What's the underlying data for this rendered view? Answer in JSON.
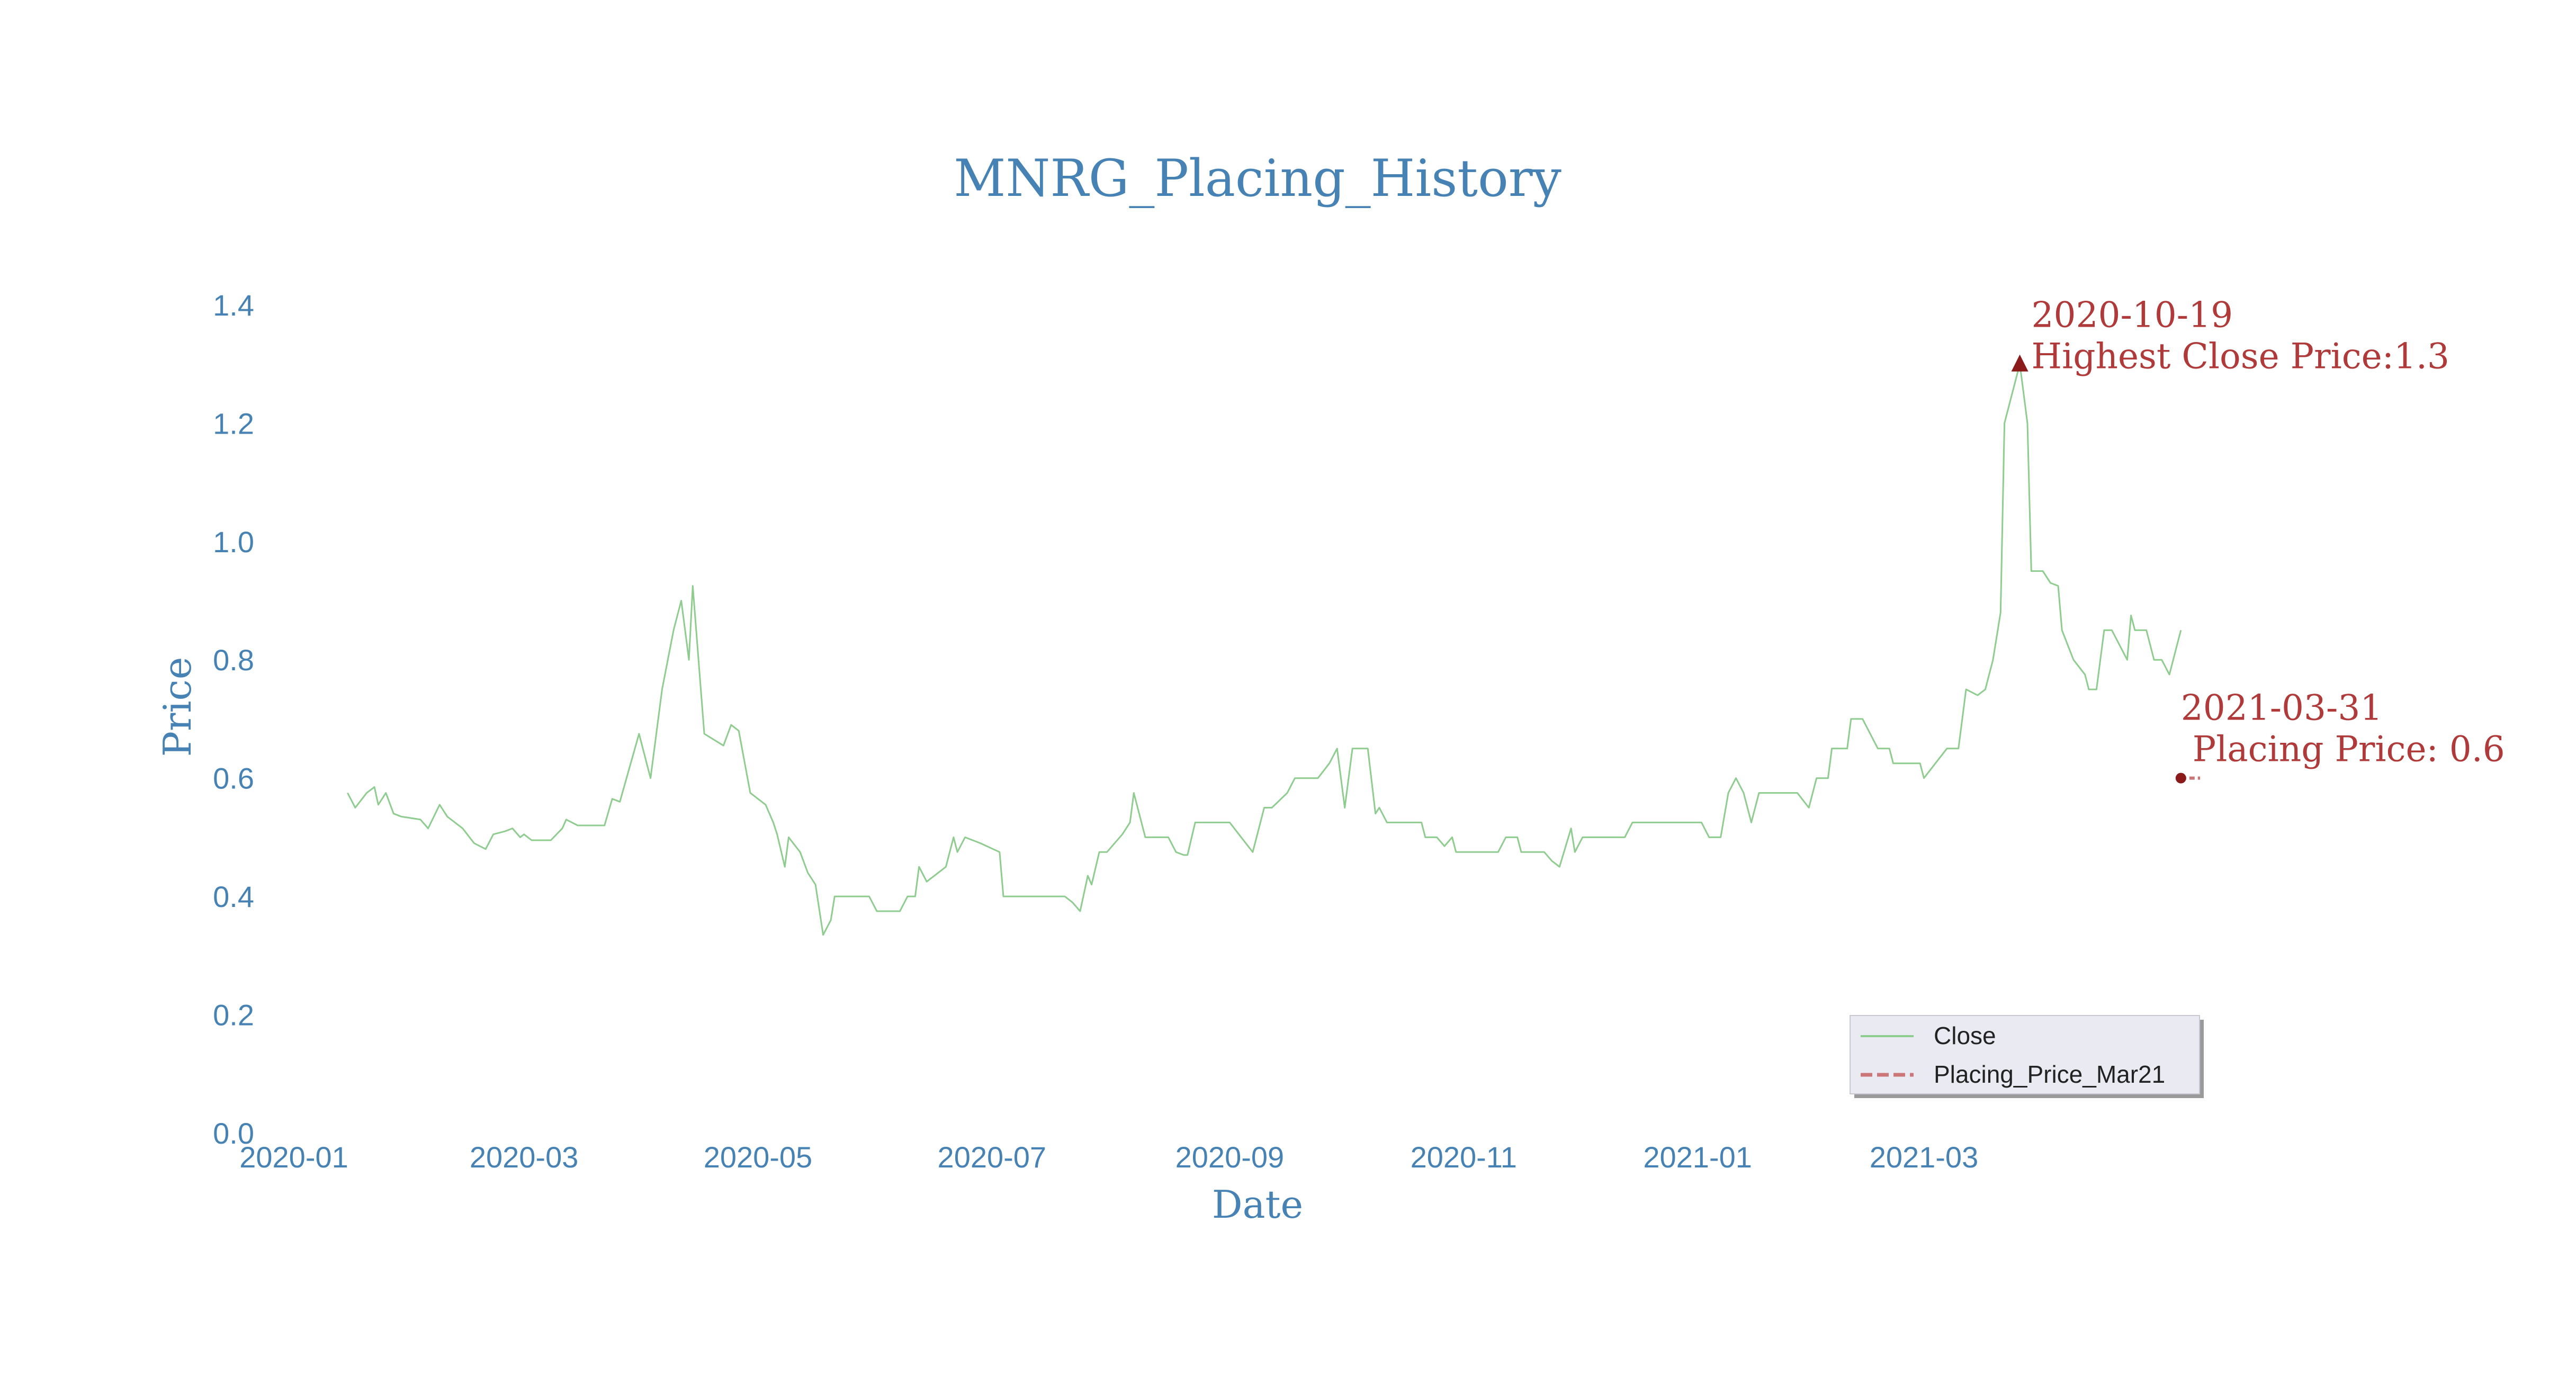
{
  "chart_data": {
    "type": "line",
    "title": "MNRG_Placing_History",
    "xlabel": "Date",
    "ylabel": "Price",
    "xlim": [
      "2020-01-01",
      "2021-05-12"
    ],
    "ylim": [
      0,
      1.45
    ],
    "x_ticks": [
      "2020-01",
      "2020-03",
      "2020-05",
      "2020-07",
      "2020-09",
      "2020-11",
      "2021-01",
      "2021-03"
    ],
    "y_ticks": [
      "0.0",
      "0.2",
      "0.4",
      "0.6",
      "0.8",
      "1.0",
      "1.2",
      "1.4"
    ],
    "grid": false,
    "legend": {
      "placement": "lower-right",
      "entries": [
        "Close",
        "Placing_Price_Mar21"
      ]
    },
    "colors": {
      "close": "#8fcc8f",
      "placing": "#cc7777",
      "annotation": "#b03a3a",
      "marker": "#8b1a1a",
      "text": "#4682b4"
    },
    "series": [
      {
        "name": "Close",
        "points": [
          [
            "2020-01-15",
            0.575
          ],
          [
            "2020-01-17",
            0.55
          ],
          [
            "2020-01-20",
            0.575
          ],
          [
            "2020-01-22",
            0.585
          ],
          [
            "2020-01-23",
            0.555
          ],
          [
            "2020-01-25",
            0.575
          ],
          [
            "2020-01-27",
            0.54
          ],
          [
            "2020-01-29",
            0.535
          ],
          [
            "2020-02-03",
            0.53
          ],
          [
            "2020-02-05",
            0.515
          ],
          [
            "2020-02-08",
            0.555
          ],
          [
            "2020-02-10",
            0.535
          ],
          [
            "2020-02-14",
            0.515
          ],
          [
            "2020-02-17",
            0.49
          ],
          [
            "2020-02-20",
            0.48
          ],
          [
            "2020-02-22",
            0.505
          ],
          [
            "2020-02-25",
            0.51
          ],
          [
            "2020-02-27",
            0.515
          ],
          [
            "2020-02-29",
            0.5
          ],
          [
            "2020-03-01",
            0.505
          ],
          [
            "2020-03-03",
            0.495
          ],
          [
            "2020-03-05",
            0.495
          ],
          [
            "2020-03-08",
            0.495
          ],
          [
            "2020-03-11",
            0.515
          ],
          [
            "2020-03-12",
            0.53
          ],
          [
            "2020-03-15",
            0.52
          ],
          [
            "2020-03-19",
            0.52
          ],
          [
            "2020-03-22",
            0.52
          ],
          [
            "2020-03-24",
            0.565
          ],
          [
            "2020-03-26",
            0.56
          ],
          [
            "2020-03-31",
            0.675
          ],
          [
            "2020-04-03",
            0.6
          ],
          [
            "2020-04-06",
            0.75
          ],
          [
            "2020-04-09",
            0.85
          ],
          [
            "2020-04-11",
            0.9
          ],
          [
            "2020-04-13",
            0.8
          ],
          [
            "2020-04-14",
            0.925
          ],
          [
            "2020-04-17",
            0.675
          ],
          [
            "2020-04-22",
            0.655
          ],
          [
            "2020-04-24",
            0.69
          ],
          [
            "2020-04-26",
            0.68
          ],
          [
            "2020-04-29",
            0.575
          ],
          [
            "2020-05-01",
            0.565
          ],
          [
            "2020-05-03",
            0.555
          ],
          [
            "2020-05-05",
            0.525
          ],
          [
            "2020-05-06",
            0.505
          ],
          [
            "2020-05-08",
            0.45
          ],
          [
            "2020-05-09",
            0.5
          ],
          [
            "2020-05-12",
            0.475
          ],
          [
            "2020-05-14",
            0.44
          ],
          [
            "2020-05-16",
            0.42
          ],
          [
            "2020-05-18",
            0.335
          ],
          [
            "2020-05-20",
            0.36
          ],
          [
            "2020-05-21",
            0.4
          ],
          [
            "2020-05-25",
            0.4
          ],
          [
            "2020-05-28",
            0.4
          ],
          [
            "2020-05-30",
            0.4
          ],
          [
            "2020-06-01",
            0.375
          ],
          [
            "2020-06-04",
            0.375
          ],
          [
            "2020-06-07",
            0.375
          ],
          [
            "2020-06-09",
            0.4
          ],
          [
            "2020-06-11",
            0.4
          ],
          [
            "2020-06-12",
            0.45
          ],
          [
            "2020-06-14",
            0.425
          ],
          [
            "2020-06-17",
            0.44
          ],
          [
            "2020-06-19",
            0.45
          ],
          [
            "2020-06-21",
            0.5
          ],
          [
            "2020-06-22",
            0.475
          ],
          [
            "2020-06-24",
            0.5
          ],
          [
            "2020-06-28",
            0.49
          ],
          [
            "2020-07-03",
            0.475
          ],
          [
            "2020-07-04",
            0.4
          ],
          [
            "2020-07-07",
            0.4
          ],
          [
            "2020-07-14",
            0.4
          ],
          [
            "2020-07-20",
            0.4
          ],
          [
            "2020-07-22",
            0.39
          ],
          [
            "2020-07-24",
            0.375
          ],
          [
            "2020-07-26",
            0.435
          ],
          [
            "2020-07-27",
            0.42
          ],
          [
            "2020-07-29",
            0.475
          ],
          [
            "2020-07-31",
            0.475
          ],
          [
            "2020-08-04",
            0.505
          ],
          [
            "2020-08-06",
            0.525
          ],
          [
            "2020-08-07",
            0.575
          ],
          [
            "2020-08-10",
            0.5
          ],
          [
            "2020-08-13",
            0.5
          ],
          [
            "2020-08-16",
            0.5
          ],
          [
            "2020-08-18",
            0.475
          ],
          [
            "2020-08-20",
            0.47
          ],
          [
            "2020-08-21",
            0.47
          ],
          [
            "2020-08-23",
            0.525
          ],
          [
            "2020-08-26",
            0.525
          ],
          [
            "2020-08-30",
            0.525
          ],
          [
            "2020-09-01",
            0.525
          ],
          [
            "2020-09-04",
            0.5
          ],
          [
            "2020-09-07",
            0.475
          ],
          [
            "2020-09-10",
            0.55
          ],
          [
            "2020-09-12",
            0.55
          ],
          [
            "2020-09-16",
            0.575
          ],
          [
            "2020-09-18",
            0.6
          ],
          [
            "2020-09-22",
            0.6
          ],
          [
            "2020-09-24",
            0.6
          ],
          [
            "2020-09-27",
            0.625
          ],
          [
            "2020-09-29",
            0.65
          ],
          [
            "2020-10-01",
            0.55
          ],
          [
            "2020-10-03",
            0.65
          ],
          [
            "2020-10-07",
            0.65
          ],
          [
            "2020-10-09",
            0.54
          ],
          [
            "2020-10-10",
            0.55
          ],
          [
            "2020-10-12",
            0.525
          ],
          [
            "2020-10-15",
            0.525
          ],
          [
            "2020-10-19",
            0.525
          ],
          [
            "2020-10-21",
            0.525
          ],
          [
            "2020-10-22",
            0.5
          ],
          [
            "2020-10-25",
            0.5
          ],
          [
            "2020-10-27",
            0.485
          ],
          [
            "2020-10-29",
            0.5
          ],
          [
            "2020-10-30",
            0.475
          ],
          [
            "2020-11-02",
            0.475
          ],
          [
            "2020-11-05",
            0.475
          ],
          [
            "2020-11-09",
            0.475
          ],
          [
            "2020-11-10",
            0.475
          ],
          [
            "2020-11-12",
            0.5
          ],
          [
            "2020-11-15",
            0.5
          ],
          [
            "2020-11-16",
            0.475
          ],
          [
            "2020-11-19",
            0.475
          ],
          [
            "2020-11-22",
            0.475
          ],
          [
            "2020-11-24",
            0.46
          ],
          [
            "2020-11-26",
            0.45
          ],
          [
            "2020-11-29",
            0.515
          ],
          [
            "2020-11-30",
            0.475
          ],
          [
            "2020-12-02",
            0.5
          ],
          [
            "2020-12-06",
            0.5
          ],
          [
            "2020-12-09",
            0.5
          ],
          [
            "2020-12-13",
            0.5
          ],
          [
            "2020-12-15",
            0.525
          ],
          [
            "2020-12-18",
            0.525
          ],
          [
            "2020-12-22",
            0.525
          ],
          [
            "2020-12-27",
            0.525
          ],
          [
            "2021-01-02",
            0.525
          ],
          [
            "2021-01-04",
            0.5
          ],
          [
            "2021-01-07",
            0.5
          ],
          [
            "2021-01-09",
            0.575
          ],
          [
            "2021-01-11",
            0.6
          ],
          [
            "2021-01-13",
            0.575
          ],
          [
            "2021-01-15",
            0.525
          ],
          [
            "2021-01-17",
            0.575
          ],
          [
            "2021-01-20",
            0.575
          ],
          [
            "2021-01-23",
            0.575
          ],
          [
            "2021-01-27",
            0.575
          ],
          [
            "2021-01-30",
            0.55
          ],
          [
            "2021-02-01",
            0.6
          ],
          [
            "2021-02-04",
            0.6
          ],
          [
            "2021-02-05",
            0.65
          ],
          [
            "2021-02-09",
            0.65
          ],
          [
            "2021-02-10",
            0.7
          ],
          [
            "2021-02-13",
            0.7
          ],
          [
            "2021-02-17",
            0.65
          ],
          [
            "2021-02-20",
            0.65
          ],
          [
            "2021-02-21",
            0.625
          ],
          [
            "2021-02-24",
            0.625
          ],
          [
            "2021-02-28",
            0.625
          ],
          [
            "2021-03-01",
            0.6
          ],
          [
            "2021-03-04",
            0.625
          ],
          [
            "2021-03-07",
            0.65
          ],
          [
            "2021-03-10",
            0.65
          ],
          [
            "2021-03-12",
            0.75
          ],
          [
            "2021-03-15",
            0.74
          ],
          [
            "2021-03-17",
            0.75
          ],
          [
            "2021-03-19",
            0.8
          ],
          [
            "2021-03-21",
            0.88
          ],
          [
            "2021-03-22",
            1.2
          ],
          [
            "2021-03-24",
            1.25
          ],
          [
            "2021-03-26",
            1.3
          ],
          [
            "2021-03-28",
            1.2
          ],
          [
            "2021-03-29",
            0.95
          ],
          [
            "2021-04-01",
            0.95
          ],
          [
            "2021-04-03",
            0.93
          ],
          [
            "2021-04-05",
            0.925
          ],
          [
            "2021-04-06",
            0.85
          ],
          [
            "2021-04-09",
            0.8
          ],
          [
            "2021-04-12",
            0.775
          ],
          [
            "2021-04-13",
            0.75
          ],
          [
            "2021-04-15",
            0.75
          ],
          [
            "2021-04-17",
            0.85
          ],
          [
            "2021-04-19",
            0.85
          ],
          [
            "2021-04-23",
            0.8
          ],
          [
            "2021-04-24",
            0.875
          ],
          [
            "2021-04-25",
            0.85
          ],
          [
            "2021-04-28",
            0.85
          ],
          [
            "2021-04-30",
            0.8
          ],
          [
            "2021-05-02",
            0.8
          ],
          [
            "2021-05-04",
            0.775
          ],
          [
            "2021-05-06",
            0.825
          ],
          [
            "2021-05-07",
            0.85
          ]
        ]
      },
      {
        "name": "Placing_Price_Mar21",
        "points": [
          [
            "2021-05-07",
            0.6
          ],
          [
            "2021-05-12",
            0.6
          ]
        ]
      }
    ],
    "annotations": [
      {
        "date": "2020-10-19",
        "label": "Highest Close Price:1.3",
        "x": "2021-03-26",
        "y": 1.3,
        "marker": "triangle"
      },
      {
        "date": "2021-03-31",
        "label": "Placing Price: 0.6",
        "x": "2021-05-07",
        "y": 0.6,
        "marker": "dot"
      }
    ]
  }
}
